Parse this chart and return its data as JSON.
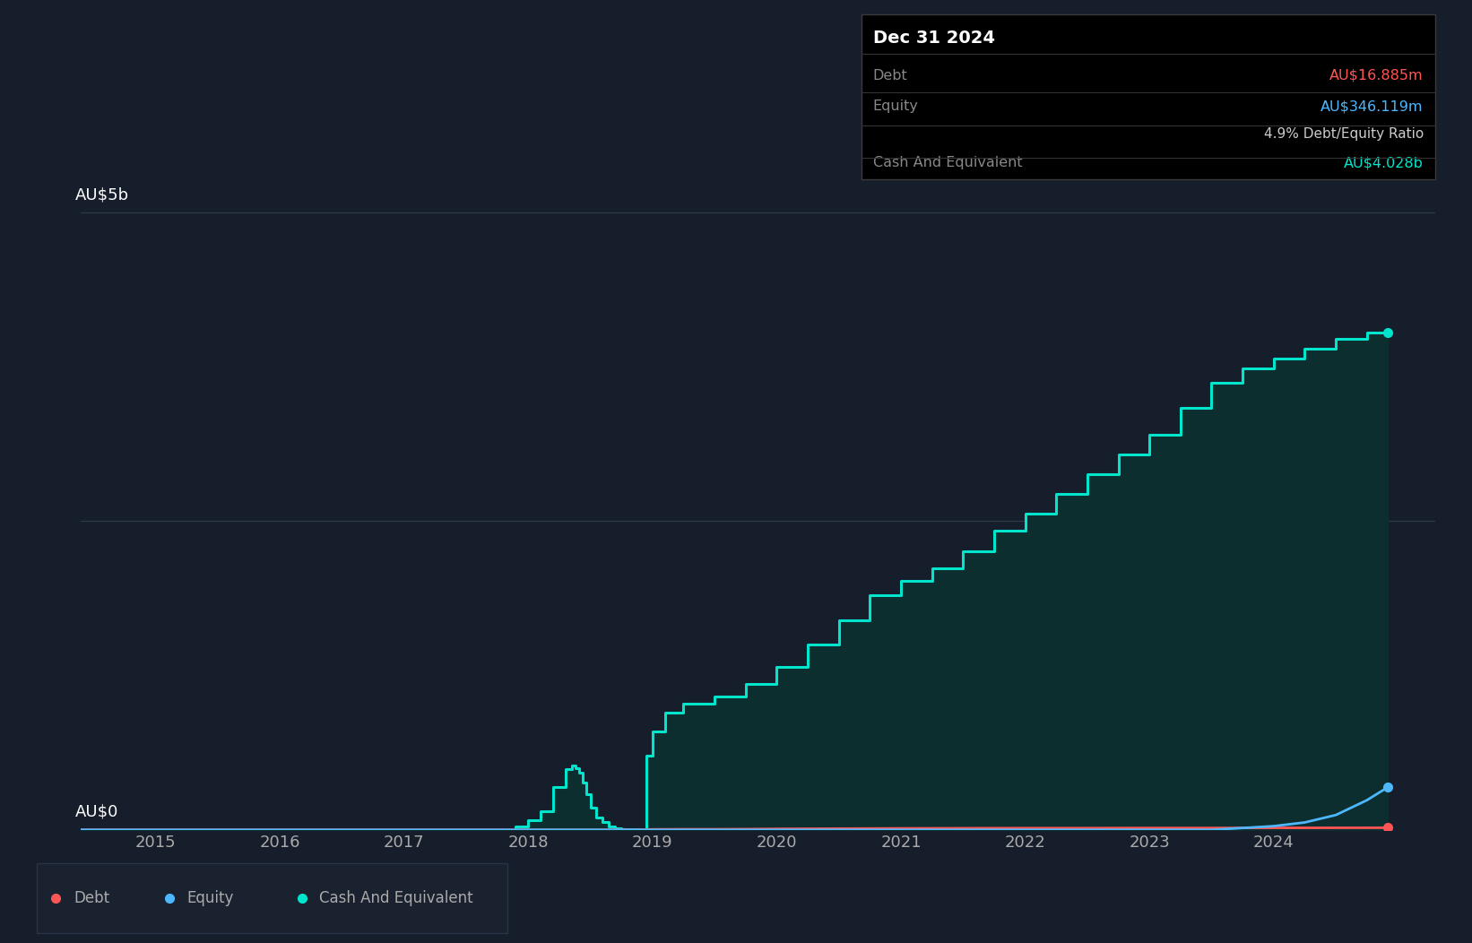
{
  "bg_color": "#161d2b",
  "plot_bg_color": "#161d2b",
  "line_color_debt": "#ff5555",
  "line_color_equity": "#4db8ff",
  "line_color_cash": "#00e5cc",
  "fill_color_cash": "#0d2e2e",
  "grid_color": "#2e3a4a",
  "text_color": "#aaaaaa",
  "ylim_max": 5500000000,
  "xlim_min": 2014.4,
  "xlim_max": 2025.3,
  "xlabel_ticks": [
    2015,
    2016,
    2017,
    2018,
    2019,
    2020,
    2021,
    2022,
    2023,
    2024
  ],
  "tooltip": {
    "date": "Dec 31 2024",
    "debt_label": "Debt",
    "debt_value": "AU$16.885m",
    "equity_label": "Equity",
    "equity_value": "AU$346.119m",
    "ratio_bold": "4.9%",
    "ratio_rest": " Debt/Equity Ratio",
    "cash_label": "Cash And Equivalent",
    "cash_value": "AU$4.028b"
  },
  "legend": [
    {
      "label": "Debt",
      "color": "#ff5555"
    },
    {
      "label": "Equity",
      "color": "#4db8ff"
    },
    {
      "label": "Cash And Equivalent",
      "color": "#00e5cc"
    }
  ],
  "debt_x": [
    2014.4,
    2015.0,
    2016.0,
    2017.0,
    2017.9,
    2018.0,
    2018.2,
    2018.4,
    2018.5,
    2018.6,
    2018.7,
    2018.8,
    2018.9,
    2019.0,
    2019.25,
    2019.5,
    2019.75,
    2020.0,
    2020.5,
    2021.0,
    2021.5,
    2022.0,
    2022.5,
    2023.0,
    2023.5,
    2024.0,
    2024.25,
    2024.5,
    2024.75,
    2024.92
  ],
  "debt_y": [
    0,
    0,
    0,
    0,
    0,
    0,
    0,
    0,
    0,
    0,
    0,
    0,
    0,
    4000000,
    5000000,
    5000000,
    6000000,
    8000000,
    10000000,
    12000000,
    13000000,
    14000000,
    14000000,
    15000000,
    15000000,
    16000000,
    16200000,
    16500000,
    16700000,
    16885000
  ],
  "equity_x": [
    2014.4,
    2019.0,
    2019.5,
    2020.0,
    2020.5,
    2021.0,
    2021.5,
    2022.0,
    2022.5,
    2023.0,
    2023.5,
    2024.0,
    2024.25,
    2024.5,
    2024.75,
    2024.92
  ],
  "equity_y": [
    0,
    0,
    0,
    0,
    0,
    0,
    0,
    0,
    0,
    0,
    0,
    30000000,
    60000000,
    120000000,
    240000000,
    346119000
  ],
  "cash_x": [
    2014.4,
    2017.9,
    2018.0,
    2018.1,
    2018.2,
    2018.3,
    2018.35,
    2018.38,
    2018.41,
    2018.44,
    2018.47,
    2018.5,
    2018.55,
    2018.6,
    2018.65,
    2018.7,
    2018.75,
    2018.8,
    2018.9,
    2018.95,
    2019.0,
    2019.1,
    2019.25,
    2019.5,
    2019.75,
    2020.0,
    2020.25,
    2020.5,
    2020.75,
    2021.0,
    2021.25,
    2021.5,
    2021.75,
    2022.0,
    2022.25,
    2022.5,
    2022.75,
    2023.0,
    2023.25,
    2023.5,
    2023.75,
    2024.0,
    2024.25,
    2024.5,
    2024.75,
    2024.92
  ],
  "cash_y": [
    0,
    0,
    30000000,
    80000000,
    150000000,
    350000000,
    490000000,
    520000000,
    500000000,
    460000000,
    380000000,
    290000000,
    180000000,
    100000000,
    60000000,
    30000000,
    15000000,
    8000000,
    3000000,
    1000000,
    600000000,
    800000000,
    950000000,
    1020000000,
    1080000000,
    1180000000,
    1320000000,
    1500000000,
    1700000000,
    1900000000,
    2020000000,
    2120000000,
    2260000000,
    2420000000,
    2560000000,
    2720000000,
    2880000000,
    3040000000,
    3200000000,
    3420000000,
    3620000000,
    3740000000,
    3820000000,
    3900000000,
    3980000000,
    4028000000
  ]
}
